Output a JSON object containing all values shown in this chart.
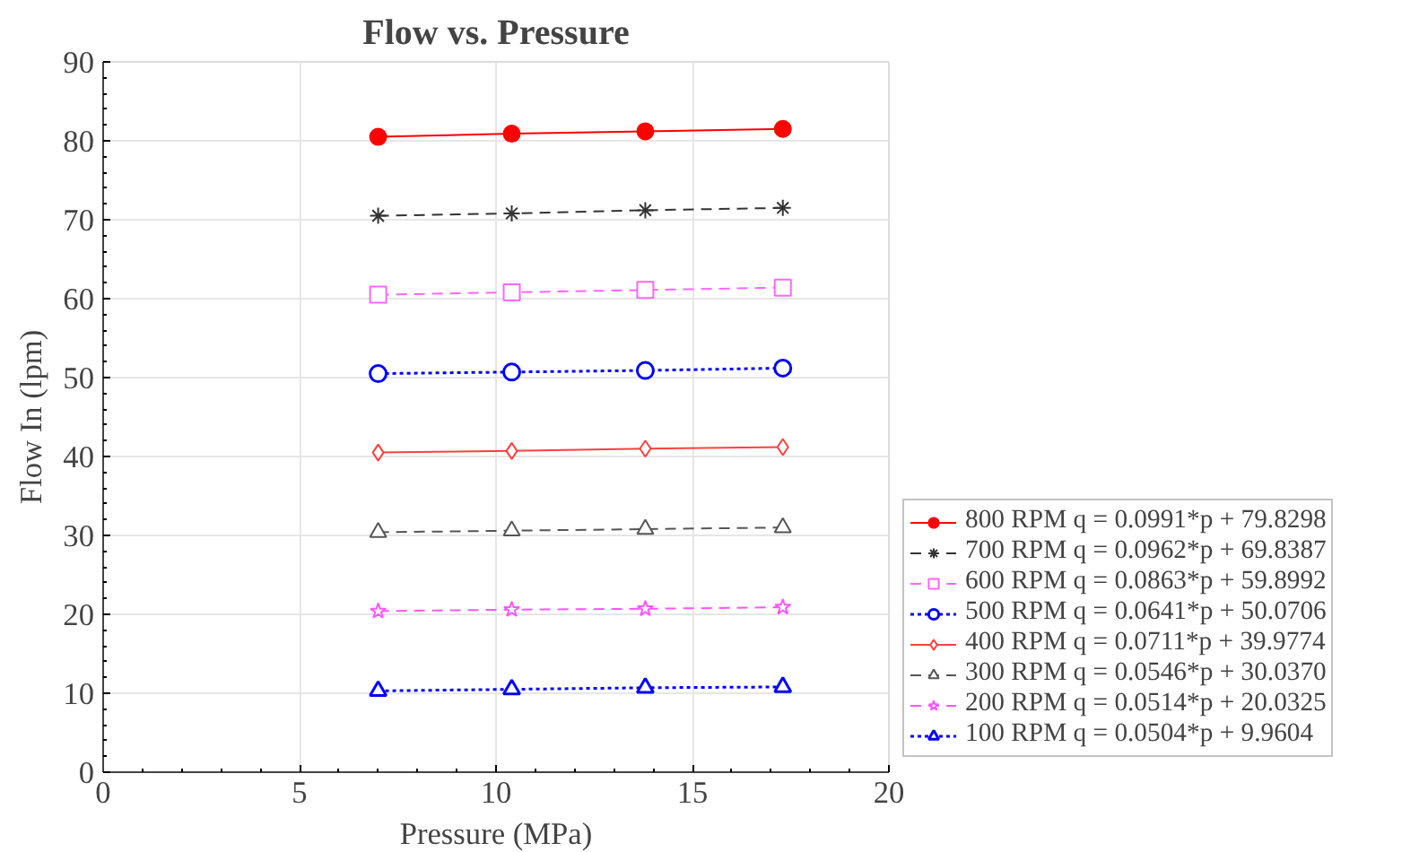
{
  "chart_data": {
    "type": "line",
    "title": "Flow vs. Pressure",
    "xlabel": "Pressure (MPa)",
    "ylabel": "Flow In (lpm)",
    "x": [
      7,
      10.4,
      13.8,
      17.3
    ],
    "xlim": [
      0,
      20
    ],
    "xticks": [
      0,
      5,
      10,
      15,
      20
    ],
    "ylim": [
      0,
      90
    ],
    "yticks": [
      0,
      10,
      20,
      30,
      40,
      50,
      60,
      70,
      80,
      90
    ],
    "grid": true,
    "legend": "right",
    "series": [
      {
        "name": "800 RPM q = 0.0991*p + 79.8298",
        "color": "#ff0000",
        "marker": "circle",
        "line_style": "solid",
        "values": [
          80.5,
          80.9,
          81.2,
          81.5
        ]
      },
      {
        "name": "700 RPM q = 0.0962*p + 69.8387",
        "color": "#333333",
        "marker": "cross",
        "line_style": "dashed",
        "values": [
          70.5,
          70.8,
          71.2,
          71.5
        ]
      },
      {
        "name": "600 RPM q = 0.0863*p + 59.8992",
        "color": "#ff66ff",
        "marker": "square",
        "line_style": "dashed",
        "values": [
          60.5,
          60.8,
          61.1,
          61.4
        ]
      },
      {
        "name": "500 RPM q = 0.0641*p + 50.0706",
        "color": "#0000ff",
        "marker": "circle",
        "line_style": "dotted",
        "values": [
          50.5,
          50.7,
          50.9,
          51.2
        ]
      },
      {
        "name": "400 RPM q = 0.0711*p + 39.9774",
        "color": "#ff4040",
        "marker": "diamond",
        "line_style": "solid",
        "values": [
          40.5,
          40.7,
          41.0,
          41.2
        ]
      },
      {
        "name": "300 RPM q = 0.0546*p + 30.0370",
        "color": "#555555",
        "marker": "triangle",
        "line_style": "dashed",
        "values": [
          30.4,
          30.6,
          30.8,
          31.0
        ]
      },
      {
        "name": "200 RPM q = 0.0514*p + 20.0325",
        "color": "#ff55ff",
        "marker": "star",
        "line_style": "dashed",
        "values": [
          20.4,
          20.6,
          20.7,
          20.9
        ]
      },
      {
        "name": "100 RPM q = 0.0504*p + 9.9604",
        "color": "#0000ff",
        "marker": "triangle",
        "line_style": "dotted",
        "values": [
          10.3,
          10.5,
          10.7,
          10.8
        ]
      }
    ]
  }
}
